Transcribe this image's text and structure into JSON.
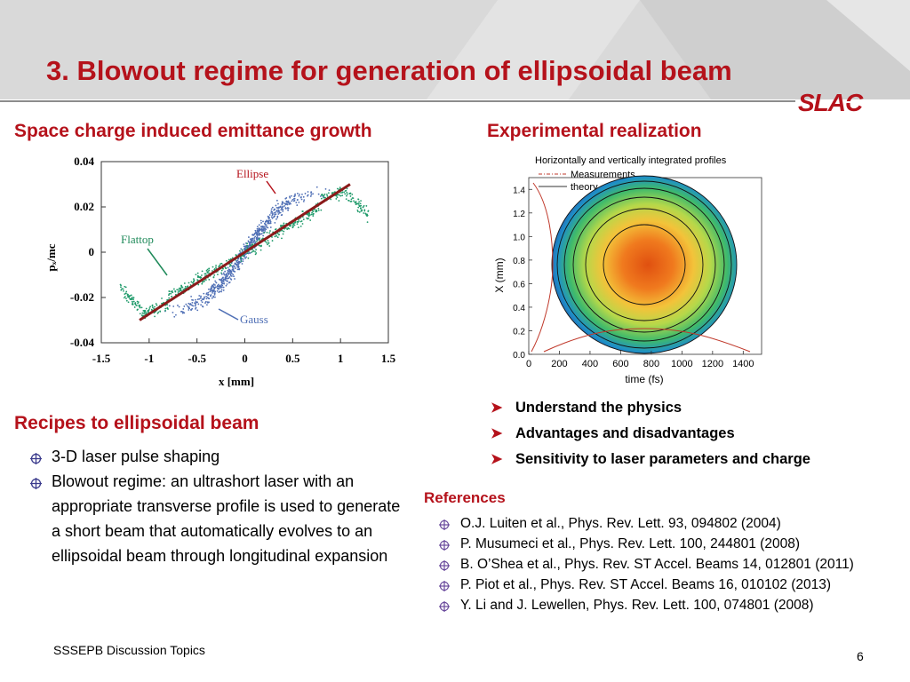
{
  "slide": {
    "title": "3.  Blowout regime for generation of ellipsoidal beam",
    "logo_text": "SLAC",
    "footer": "SSSEPB Discussion Topics",
    "page_number": "6"
  },
  "left": {
    "heading": "Space charge induced emittance growth",
    "recipes_heading": "Recipes to ellipsoidal beam",
    "recipes": [
      "3-D laser pulse shaping",
      "Blowout regime: an ultrashort laser with an appropriate transverse profile is used to generate a short beam that automatically evolves to an ellipsoidal beam through longitudinal expansion"
    ]
  },
  "right": {
    "heading": "Experimental realization",
    "points": [
      "Understand the physics",
      "Advantages and disadvantages",
      "Sensitivity to laser parameters and charge"
    ],
    "references_heading": "References",
    "references": [
      "O.J. Luiten et al., Phys. Rev. Lett. 93, 094802 (2004)",
      "P. Musumeci et al., Phys. Rev. Lett. 100, 244801 (2008)",
      "B. O’Shea et al., Phys. Rev. ST Accel. Beams 14, 012801 (2011)",
      "P. Piot et al., Phys. Rev. ST Accel. Beams 16, 010102 (2013)",
      "Y. Li and J. Lewellen, Phys. Rev. Lett. 100, 074801 (2008)"
    ]
  },
  "chart_data": [
    {
      "type": "scatter",
      "xlabel": "x [mm]",
      "ylabel": "pₓ/mc",
      "xlim": [
        -1.5,
        1.5
      ],
      "ylim": [
        -0.04,
        0.04
      ],
      "xticks": [
        "-1.5",
        "-1",
        "-0.5",
        "0",
        "0.5",
        "1",
        "1.5"
      ],
      "yticks": [
        "0.04",
        "0.02",
        "0",
        "-0.02",
        "-0.04"
      ],
      "annotations": [
        "Ellipse",
        "Flattop",
        "Gauss"
      ],
      "series": [
        {
          "name": "Ellipse",
          "color": "#8b1a1a",
          "x": [
            -1.1,
            1.1
          ],
          "y": [
            -0.03,
            0.03
          ]
        },
        {
          "name": "Flattop",
          "color": "#1f9a6a"
        },
        {
          "name": "Gauss",
          "color": "#4f6fb5"
        }
      ]
    },
    {
      "type": "heatmap",
      "title": "Horizontally and vertically integrated profiles",
      "xlabel": "time (fs)",
      "ylabel": "X (mm)",
      "xticks": [
        "0",
        "200",
        "400",
        "600",
        "800",
        "1000",
        "1200",
        "1400"
      ],
      "yticks": [
        "0.0",
        "0.2",
        "0.4",
        "0.6",
        "0.8",
        "1.0",
        "1.2",
        "1.4"
      ],
      "legend": [
        "Measurements",
        "theory"
      ]
    }
  ]
}
